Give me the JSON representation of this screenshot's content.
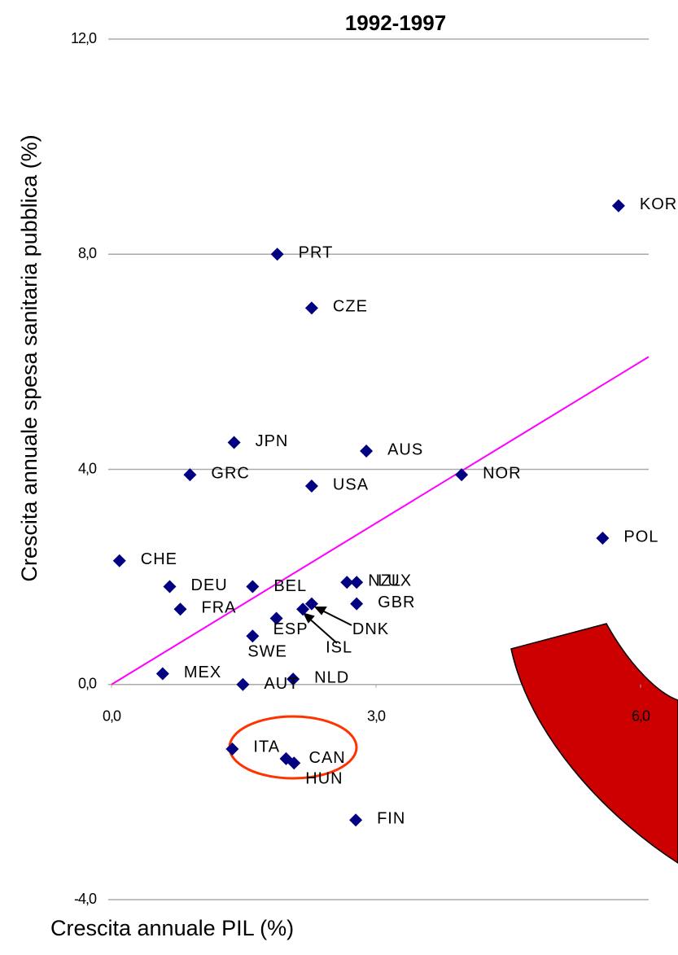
{
  "chart_data": {
    "type": "scatter",
    "title": "1992-1997",
    "x_label": "Crescita annuale PIL (%)",
    "y_label": "Crescita annuale spesa sanitaria pubblica (%)",
    "labels": [
      "KOR",
      "PRT",
      "CZE",
      "JPN",
      "AUS",
      "GRC",
      "NOR",
      "USA",
      "POL",
      "CHE",
      "NZL",
      "LUX",
      "DEU",
      "BEL",
      "FRA",
      "GBR",
      "DNK",
      "ISL",
      "ESP",
      "SWE",
      "MEX",
      "NLD",
      "AUT",
      "ITA",
      "CAN",
      "HUN",
      "FIN"
    ],
    "x": [
      5.75,
      1.88,
      2.27,
      1.39,
      2.89,
      0.89,
      3.97,
      2.27,
      5.57,
      0.09,
      2.67,
      2.78,
      0.66,
      1.6,
      0.78,
      2.78,
      2.27,
      2.17,
      1.87,
      1.6,
      0.58,
      2.06,
      1.49,
      1.37,
      1.98,
      2.07,
      2.77
    ],
    "values": [
      8.9,
      8.0,
      7.0,
      4.5,
      4.34,
      3.9,
      3.9,
      3.69,
      2.72,
      2.3,
      1.9,
      1.9,
      1.82,
      1.82,
      1.4,
      1.5,
      1.5,
      1.4,
      1.23,
      0.9,
      0.2,
      0.1,
      0.0,
      -1.2,
      -1.38,
      -1.46,
      -2.52
    ],
    "color": "#000080",
    "trendline": {
      "slope": 1,
      "intercept": 0,
      "color": "#ff00ff"
    },
    "xlim": [
      0,
      6
    ],
    "ylim": [
      -4,
      12
    ],
    "xticks": [
      {
        "value": 0,
        "label": "0,0"
      },
      {
        "value": 3,
        "label": "3,0"
      },
      {
        "value": 6,
        "label": "6,0"
      }
    ],
    "yticks": [
      {
        "value": -4,
        "label": "-4,0"
      },
      {
        "value": 0,
        "label": "0,0"
      },
      {
        "value": 4,
        "label": "4,0"
      },
      {
        "value": 8,
        "label": "8,0"
      },
      {
        "value": 12,
        "label": "12,0"
      }
    ],
    "grid": true
  }
}
